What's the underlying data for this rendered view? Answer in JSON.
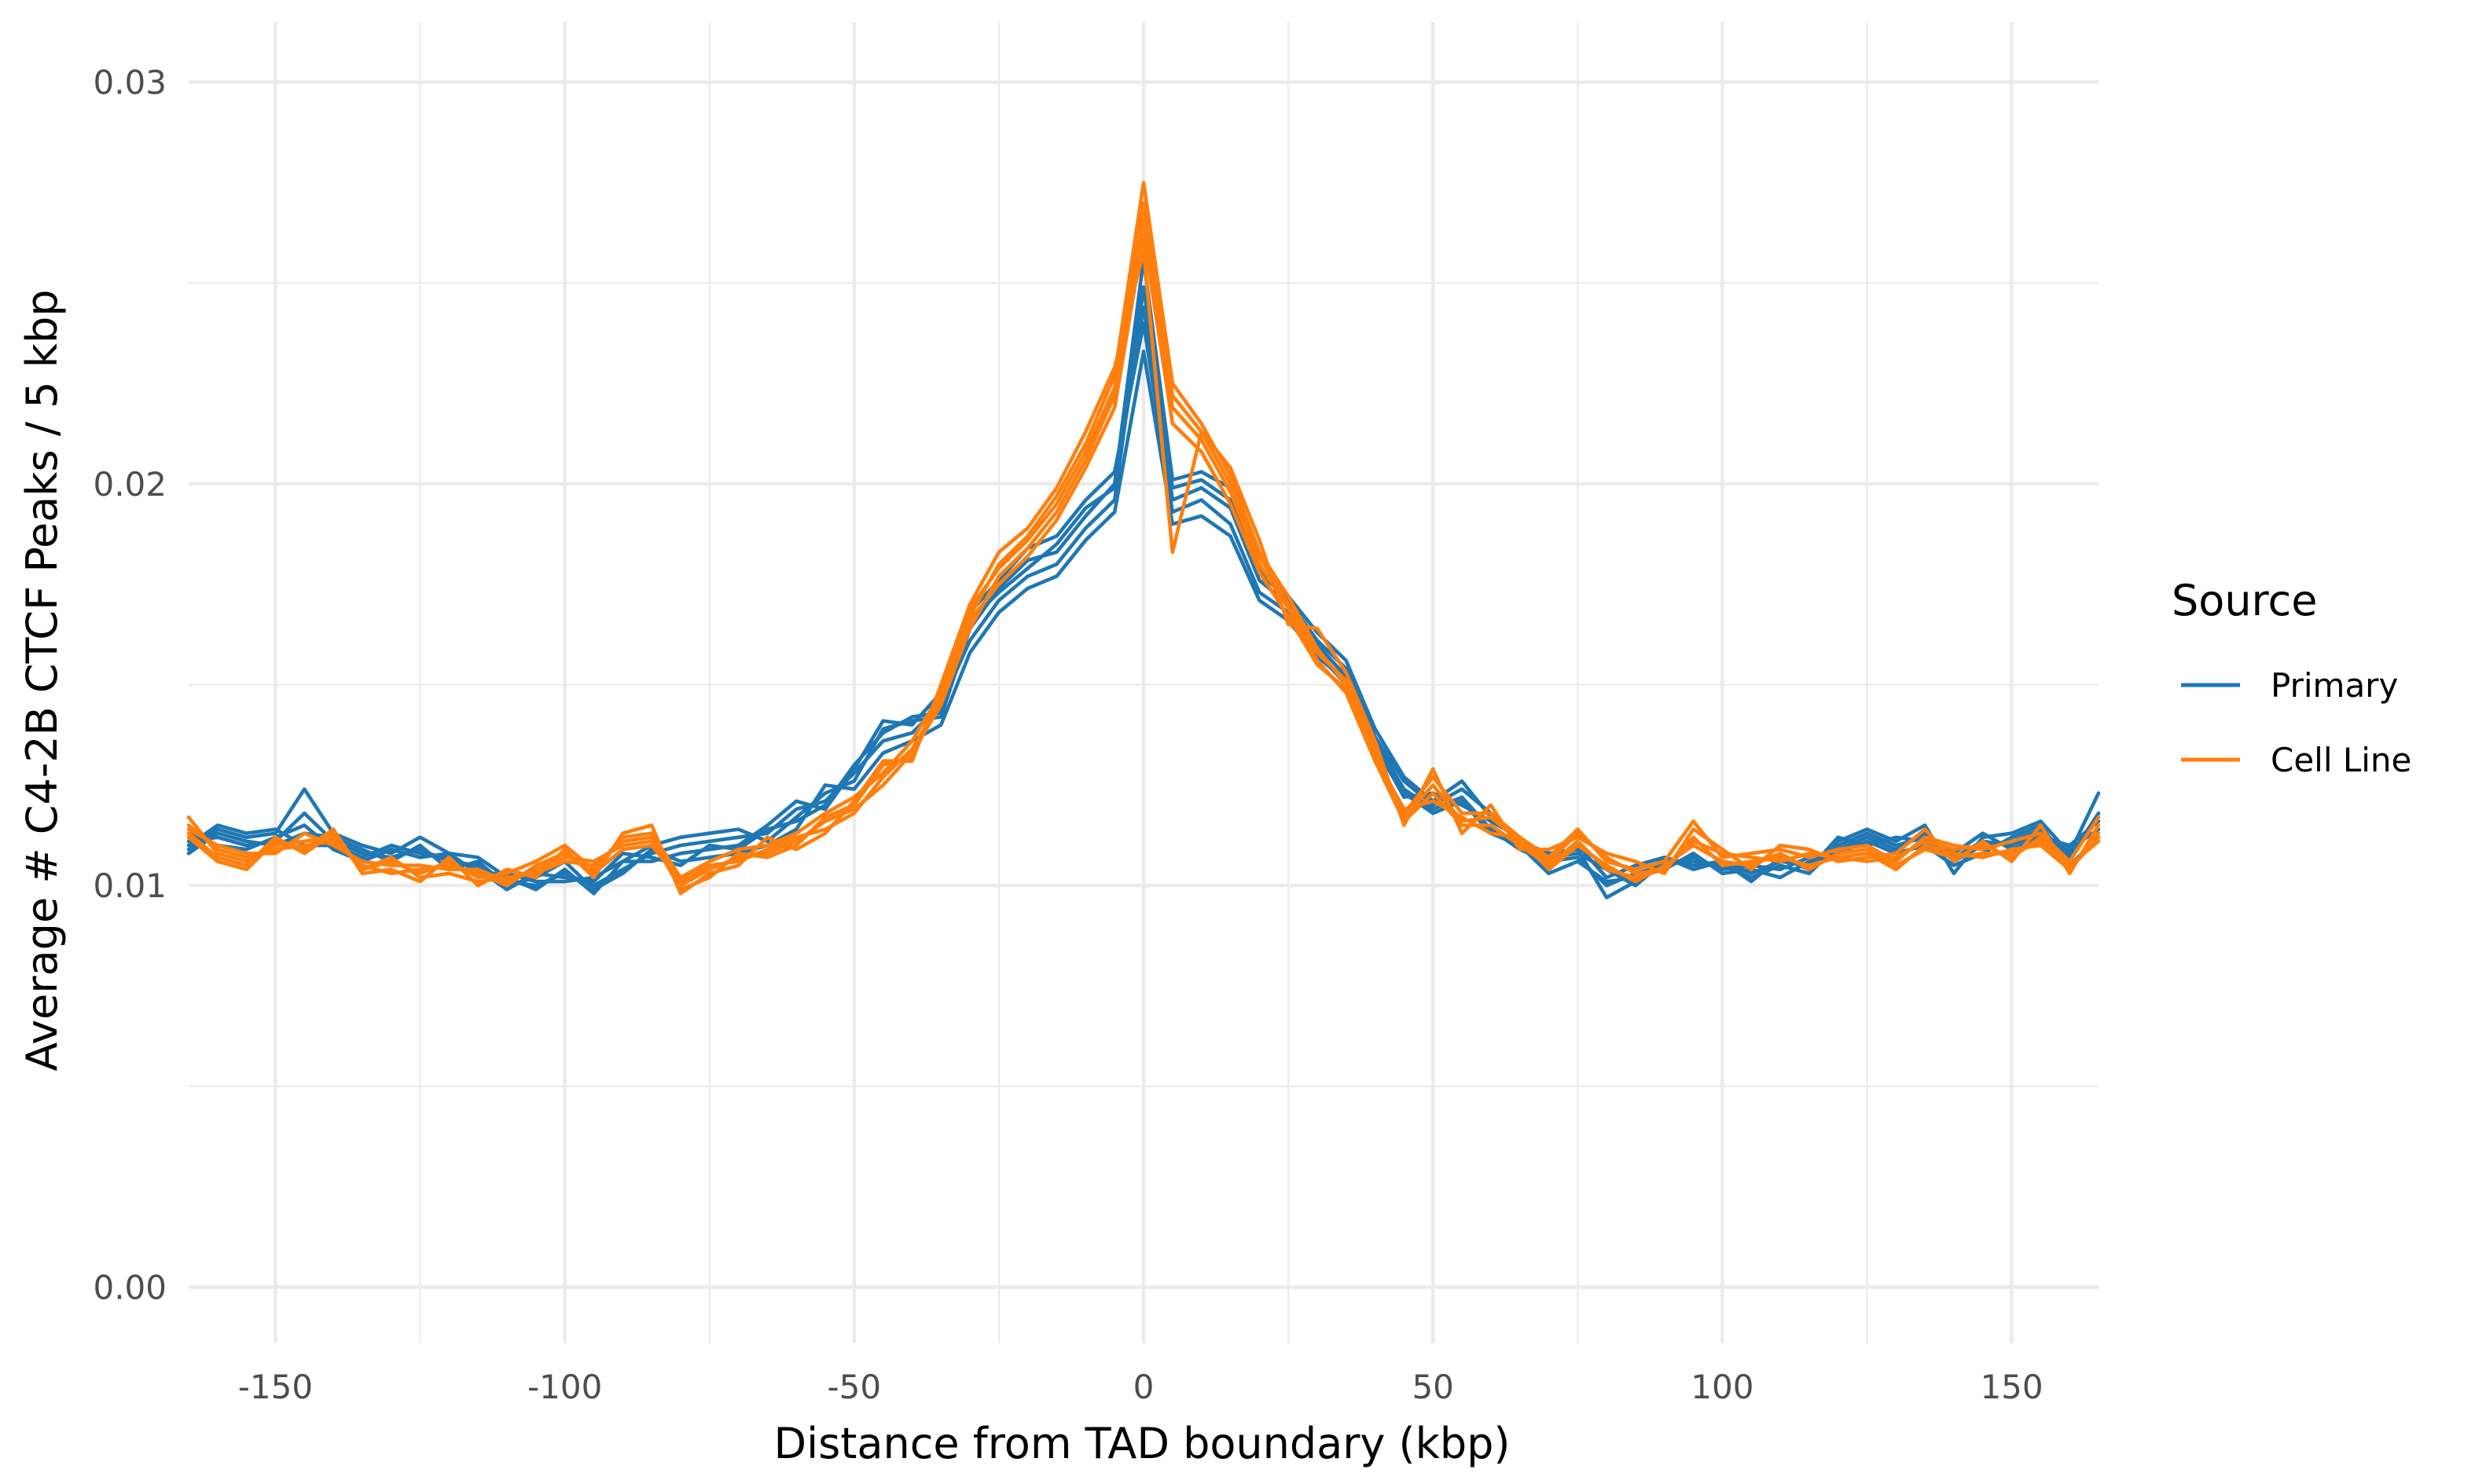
{
  "chart_data": {
    "type": "line",
    "title": "",
    "xlabel": "Distance from TAD boundary (kbp)",
    "ylabel": "Average # C4-2B CTCF Peaks / 5 kbp",
    "xlim": [
      -165,
      165
    ],
    "ylim": [
      -0.0014,
      0.0315
    ],
    "x_ticks": [
      -150,
      -100,
      -50,
      0,
      50,
      100,
      150
    ],
    "x_tick_labels": [
      "-150",
      "-100",
      "-50",
      "0",
      "50",
      "100",
      "150"
    ],
    "y_ticks": [
      0.0,
      0.01,
      0.02,
      0.03
    ],
    "y_tick_labels": [
      "0.00",
      "0.01",
      "0.02",
      "0.03"
    ],
    "grid": true,
    "legend": {
      "title": "Source",
      "position": "right",
      "entries": [
        {
          "label": "Primary",
          "color": "#1f77b4"
        },
        {
          "label": "Cell Line",
          "color": "#ff7f0e"
        }
      ]
    },
    "x": [
      -165,
      -160,
      -155,
      -150,
      -145,
      -140,
      -135,
      -130,
      -125,
      -120,
      -115,
      -110,
      -105,
      -100,
      -95,
      -90,
      -85,
      -80,
      -75,
      -70,
      -65,
      -60,
      -55,
      -50,
      -45,
      -40,
      -35,
      -30,
      -25,
      -20,
      -15,
      -10,
      -5,
      0,
      5,
      10,
      15,
      20,
      25,
      30,
      35,
      40,
      45,
      50,
      55,
      60,
      65,
      70,
      75,
      80,
      85,
      90,
      95,
      100,
      105,
      110,
      115,
      120,
      125,
      130,
      135,
      140,
      145,
      150,
      155,
      160,
      165
    ],
    "series": [
      {
        "group": "Primary",
        "color": "#1f77b4",
        "values": [
          0.0109,
          0.0114,
          0.0112,
          0.0113,
          0.0124,
          0.0113,
          0.011,
          0.0108,
          0.0112,
          0.0108,
          0.0107,
          0.0102,
          0.0099,
          0.0104,
          0.0098,
          0.0106,
          0.011,
          0.0112,
          0.0113,
          0.0114,
          0.0111,
          0.0117,
          0.0123,
          0.0126,
          0.0139,
          0.0141,
          0.0142,
          0.0164,
          0.0174,
          0.0181,
          0.0183,
          0.0192,
          0.02,
          0.0256,
          0.0201,
          0.0203,
          0.0199,
          0.0179,
          0.0172,
          0.0163,
          0.0156,
          0.0139,
          0.0127,
          0.0121,
          0.0126,
          0.0117,
          0.0111,
          0.0108,
          0.0109,
          0.0097,
          0.0101,
          0.0107,
          0.0105,
          0.0106,
          0.0103,
          0.0106,
          0.0105,
          0.0111,
          0.0114,
          0.0111,
          0.0115,
          0.0103,
          0.0112,
          0.0113,
          0.0116,
          0.0108,
          0.0123
        ]
      },
      {
        "group": "Primary",
        "color": "#1f77b4",
        "values": [
          0.0111,
          0.0112,
          0.011,
          0.0111,
          0.0118,
          0.0111,
          0.0108,
          0.0107,
          0.0109,
          0.0106,
          0.0105,
          0.0101,
          0.01,
          0.0103,
          0.01,
          0.0104,
          0.0108,
          0.011,
          0.0111,
          0.0112,
          0.0113,
          0.0119,
          0.0121,
          0.0128,
          0.0136,
          0.0138,
          0.0145,
          0.0161,
          0.0171,
          0.0177,
          0.018,
          0.0189,
          0.0196,
          0.0249,
          0.0196,
          0.0199,
          0.0194,
          0.0176,
          0.017,
          0.016,
          0.0152,
          0.0136,
          0.0124,
          0.0119,
          0.0122,
          0.0114,
          0.0109,
          0.0106,
          0.0107,
          0.01,
          0.0103,
          0.0105,
          0.0107,
          0.0104,
          0.0105,
          0.0104,
          0.0107,
          0.0109,
          0.0112,
          0.0109,
          0.0113,
          0.0106,
          0.011,
          0.0111,
          0.0114,
          0.0107,
          0.0118
        ]
      },
      {
        "group": "Primary",
        "color": "#1f77b4",
        "values": [
          0.0113,
          0.011,
          0.0109,
          0.0112,
          0.0115,
          0.0109,
          0.0106,
          0.0109,
          0.0107,
          0.0108,
          0.0103,
          0.0103,
          0.0101,
          0.0101,
          0.0102,
          0.0106,
          0.0106,
          0.0108,
          0.0109,
          0.011,
          0.0115,
          0.0121,
          0.0119,
          0.0129,
          0.0141,
          0.014,
          0.0148,
          0.0168,
          0.0176,
          0.0184,
          0.0187,
          0.0196,
          0.0203,
          0.024,
          0.0193,
          0.0196,
          0.019,
          0.0173,
          0.0168,
          0.0158,
          0.015,
          0.0135,
          0.0122,
          0.0123,
          0.012,
          0.0116,
          0.0112,
          0.0104,
          0.011,
          0.0102,
          0.0105,
          0.0107,
          0.0104,
          0.0106,
          0.0101,
          0.0107,
          0.0104,
          0.0112,
          0.011,
          0.0112,
          0.0111,
          0.0108,
          0.0113,
          0.0109,
          0.0112,
          0.011,
          0.0116
        ]
      },
      {
        "group": "Primary",
        "color": "#1f77b4",
        "values": [
          0.0108,
          0.0113,
          0.0111,
          0.011,
          0.0113,
          0.0112,
          0.0109,
          0.0106,
          0.011,
          0.0104,
          0.0106,
          0.01,
          0.0102,
          0.0106,
          0.0099,
          0.0103,
          0.0109,
          0.0106,
          0.0107,
          0.0108,
          0.011,
          0.0114,
          0.0125,
          0.0124,
          0.0133,
          0.0136,
          0.014,
          0.0158,
          0.0168,
          0.0174,
          0.0177,
          0.0186,
          0.0193,
          0.0233,
          0.019,
          0.0192,
          0.0187,
          0.0171,
          0.0166,
          0.0157,
          0.0151,
          0.0134,
          0.0123,
          0.0118,
          0.0121,
          0.0113,
          0.011,
          0.0103,
          0.0106,
          0.0101,
          0.0102,
          0.0104,
          0.0108,
          0.0103,
          0.0104,
          0.0102,
          0.0106,
          0.0108,
          0.0111,
          0.0108,
          0.011,
          0.0105,
          0.0108,
          0.0112,
          0.0115,
          0.0105,
          0.0112
        ]
      },
      {
        "group": "Primary",
        "color": "#1f77b4",
        "values": [
          0.011,
          0.0115,
          0.0113,
          0.0114,
          0.011,
          0.011,
          0.0107,
          0.011,
          0.0108,
          0.0107,
          0.0104,
          0.0099,
          0.0103,
          0.0102,
          0.0101,
          0.0108,
          0.0107,
          0.0105,
          0.011,
          0.0109,
          0.0114,
          0.0116,
          0.012,
          0.013,
          0.0138,
          0.0142,
          0.0143,
          0.0166,
          0.0173,
          0.0179,
          0.0185,
          0.0194,
          0.0199,
          0.0244,
          0.0199,
          0.0201,
          0.0196,
          0.0178,
          0.0171,
          0.0161,
          0.0154,
          0.0137,
          0.0126,
          0.012,
          0.0124,
          0.0118,
          0.0111,
          0.0107,
          0.0108,
          0.0104,
          0.01,
          0.0106,
          0.0106,
          0.0105,
          0.0102,
          0.0105,
          0.0103,
          0.011,
          0.0113,
          0.011,
          0.0112,
          0.0107,
          0.0111,
          0.011,
          0.0113,
          0.0109,
          0.0114
        ]
      },
      {
        "group": "Cell Line",
        "color": "#ff7f0e",
        "values": [
          0.0117,
          0.0108,
          0.0106,
          0.011,
          0.0111,
          0.0112,
          0.0104,
          0.0106,
          0.0103,
          0.0106,
          0.0102,
          0.0103,
          0.0106,
          0.011,
          0.0104,
          0.0112,
          0.0113,
          0.0102,
          0.0106,
          0.0109,
          0.011,
          0.0113,
          0.0118,
          0.0122,
          0.0128,
          0.0136,
          0.0148,
          0.0167,
          0.018,
          0.0187,
          0.0197,
          0.021,
          0.0227,
          0.0275,
          0.0225,
          0.0215,
          0.0202,
          0.0183,
          0.0172,
          0.0159,
          0.015,
          0.0133,
          0.0118,
          0.0127,
          0.0118,
          0.0118,
          0.0112,
          0.0107,
          0.0114,
          0.0106,
          0.0104,
          0.0106,
          0.0116,
          0.0107,
          0.0108,
          0.0109,
          0.0107,
          0.0109,
          0.011,
          0.0106,
          0.0112,
          0.011,
          0.0109,
          0.0111,
          0.0113,
          0.0106,
          0.0117
        ]
      },
      {
        "group": "Cell Line",
        "color": "#ff7f0e",
        "values": [
          0.0114,
          0.011,
          0.0108,
          0.0108,
          0.0113,
          0.011,
          0.0106,
          0.0105,
          0.0105,
          0.0104,
          0.0104,
          0.0101,
          0.0104,
          0.0107,
          0.0106,
          0.011,
          0.0111,
          0.01,
          0.0104,
          0.0107,
          0.0108,
          0.0111,
          0.0116,
          0.0119,
          0.0125,
          0.0133,
          0.0145,
          0.0164,
          0.0177,
          0.0184,
          0.0193,
          0.0206,
          0.0222,
          0.0266,
          0.0219,
          0.0211,
          0.0198,
          0.018,
          0.0169,
          0.0156,
          0.0148,
          0.0131,
          0.0116,
          0.0123,
          0.0115,
          0.0115,
          0.011,
          0.0105,
          0.0111,
          0.0104,
          0.0102,
          0.0104,
          0.0112,
          0.0105,
          0.0106,
          0.0107,
          0.0105,
          0.0107,
          0.0108,
          0.0104,
          0.011,
          0.0108,
          0.0107,
          0.0109,
          0.011,
          0.0104,
          0.0113
        ]
      },
      {
        "group": "Cell Line",
        "color": "#ff7f0e",
        "values": [
          0.0112,
          0.0106,
          0.0104,
          0.0111,
          0.0109,
          0.0114,
          0.0103,
          0.0104,
          0.0101,
          0.0107,
          0.01,
          0.0104,
          0.0102,
          0.0109,
          0.0102,
          0.0113,
          0.0115,
          0.0098,
          0.0103,
          0.0105,
          0.0112,
          0.0109,
          0.0113,
          0.0121,
          0.0131,
          0.0131,
          0.015,
          0.017,
          0.0183,
          0.0189,
          0.0199,
          0.0213,
          0.0229,
          0.0258,
          0.0183,
          0.0213,
          0.0204,
          0.0186,
          0.0165,
          0.0164,
          0.0153,
          0.0136,
          0.0115,
          0.0129,
          0.0113,
          0.012,
          0.0109,
          0.0109,
          0.0112,
          0.0108,
          0.0106,
          0.0103,
          0.0114,
          0.0109,
          0.0104,
          0.011,
          0.0109,
          0.0106,
          0.0107,
          0.0108,
          0.0114,
          0.0106,
          0.0111,
          0.0106,
          0.0115,
          0.0103,
          0.0115
        ]
      },
      {
        "group": "Cell Line",
        "color": "#ff7f0e",
        "values": [
          0.0115,
          0.0109,
          0.0107,
          0.0109,
          0.011,
          0.0111,
          0.0105,
          0.0103,
          0.0104,
          0.0105,
          0.0103,
          0.01,
          0.0105,
          0.0108,
          0.0103,
          0.0109,
          0.011,
          0.0101,
          0.0105,
          0.0106,
          0.0109,
          0.0112,
          0.0114,
          0.0118,
          0.0127,
          0.0134,
          0.0146,
          0.0166,
          0.0175,
          0.0182,
          0.0191,
          0.0204,
          0.0219,
          0.0262,
          0.0215,
          0.0208,
          0.0195,
          0.0178,
          0.0167,
          0.0155,
          0.0149,
          0.0132,
          0.0119,
          0.0121,
          0.0117,
          0.0113,
          0.0112,
          0.0104,
          0.011,
          0.0105,
          0.0101,
          0.0105,
          0.011,
          0.0106,
          0.0105,
          0.0108,
          0.0104,
          0.0108,
          0.0109,
          0.0105,
          0.0109,
          0.0107,
          0.0108,
          0.0108,
          0.0111,
          0.0105,
          0.0111
        ]
      },
      {
        "group": "Cell Line",
        "color": "#ff7f0e",
        "values": [
          0.0113,
          0.0107,
          0.0105,
          0.0112,
          0.0108,
          0.0113,
          0.0104,
          0.0107,
          0.0102,
          0.0103,
          0.0101,
          0.0102,
          0.0103,
          0.0106,
          0.0105,
          0.0111,
          0.0112,
          0.0099,
          0.0102,
          0.0108,
          0.0107,
          0.011,
          0.0117,
          0.012,
          0.013,
          0.0132,
          0.0147,
          0.0169,
          0.0179,
          0.0186,
          0.0195,
          0.0208,
          0.0224,
          0.027,
          0.0222,
          0.0213,
          0.02,
          0.0182,
          0.017,
          0.0158,
          0.0151,
          0.0134,
          0.0117,
          0.0125,
          0.0116,
          0.0117,
          0.0111,
          0.0106,
          0.0113,
          0.0107,
          0.0103,
          0.0104,
          0.0111,
          0.0108,
          0.0107,
          0.0106,
          0.0108,
          0.0107,
          0.0106,
          0.0107,
          0.0111,
          0.0109,
          0.011,
          0.0107,
          0.0112,
          0.0104,
          0.0112
        ]
      }
    ]
  }
}
